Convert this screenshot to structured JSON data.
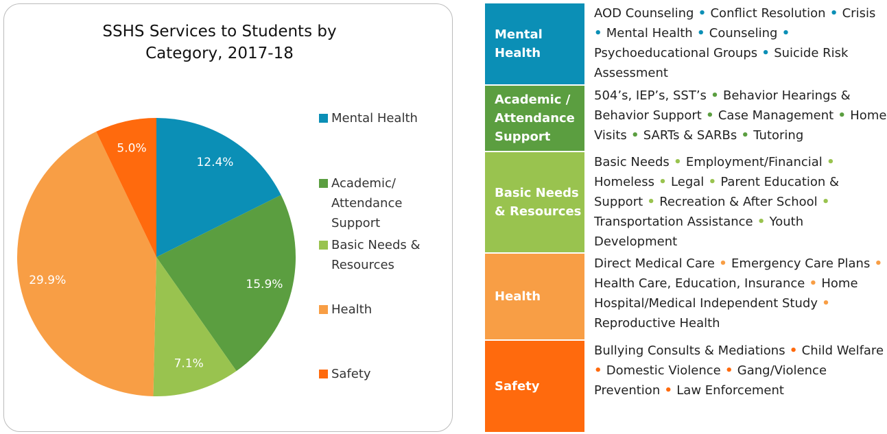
{
  "chart_data": {
    "type": "pie",
    "title": "SSHS Services to Students by Category, 2017-18",
    "categories": [
      "Mental Health",
      "Academic/ Attendance Support",
      "Basic Needs & Resources",
      "Health",
      "Safety"
    ],
    "values": [
      12.4,
      15.9,
      7.1,
      29.9,
      5.0
    ],
    "value_labels": [
      "12.4%",
      "15.9%",
      "7.1%",
      "29.9%",
      "5.0%"
    ],
    "colors": [
      "#0b8fb6",
      "#5b9e40",
      "#99c34f",
      "#f89e45",
      "#ff6a0d"
    ],
    "legend": "right"
  },
  "table": {
    "rows": [
      {
        "category": "Mental Health",
        "color": "#0b8fb6",
        "items": [
          "AOD Counseling",
          "Conflict Resolution",
          "Crisis",
          "Mental Health",
          "Counseling",
          "Psychoeducational Groups",
          "Suicide Risk Assessment"
        ]
      },
      {
        "category": "Academic / Attendance Support",
        "color": "#5b9e40",
        "items": [
          "504’s, IEP’s, SST’s",
          "Behavior Hearings & Behavior Support",
          "Case Management",
          "Home Visits",
          "SARTs & SARBs",
          "Tutoring"
        ]
      },
      {
        "category": "Basic Needs & Resources",
        "color": "#99c34f",
        "items": [
          "Basic Needs",
          "Employment/Financial",
          "Homeless",
          "Legal",
          "Parent Education & Support",
          "Recreation & After School",
          "Transportation Assistance",
          "Youth Development"
        ]
      },
      {
        "category": "Health",
        "color": "#f89e45",
        "items": [
          "Direct Medical Care",
          "Emergency Care Plans",
          "Health Care, Education, Insurance",
          "Home Hospital/Medical Independent Study",
          "Reproductive Health"
        ]
      },
      {
        "category": "Safety",
        "color": "#ff6a0d",
        "items": [
          "Bullying Consults & Mediations",
          "Child Welfare",
          "Domestic Violence",
          "Gang/Violence Prevention",
          "Law Enforcement"
        ]
      }
    ]
  }
}
